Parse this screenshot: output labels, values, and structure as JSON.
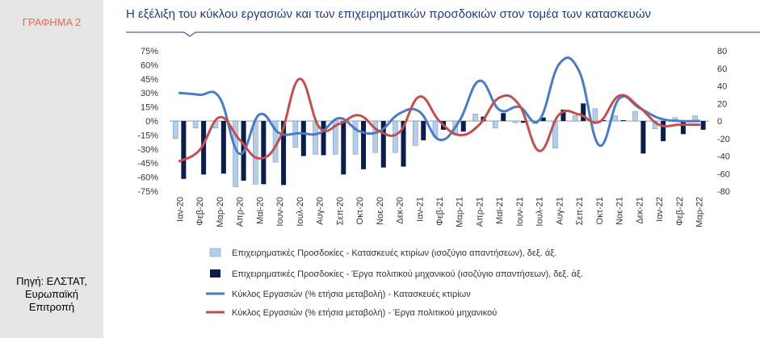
{
  "sidebar": {
    "figure_label": "ΓΡΑΦΗΜΑ 2",
    "source": "Πηγή: ΕΛΣΤΑΤ,\nΕυρωπαϊκή\nΕπιτροπή"
  },
  "colors": {
    "title": "#1f3d7a",
    "accent_label": "#e26b5a",
    "sidebar_bg": "#e7e6e6",
    "light_bar": "#b4cde8",
    "dark_bar": "#0b1d4a",
    "blue_line": "#4a7bc4",
    "red_line": "#c0504d"
  },
  "chart_data": {
    "type": "bar",
    "title": "Η εξέλιξη του κύκλου εργασιών και των επιχειρηματικών προσδοκιών στον τομέα των κατασκευών",
    "categories": [
      "Ιαν-20",
      "Φεβ-20",
      "Μαρ-20",
      "Απρ-20",
      "Μαϊ-20",
      "Ιουν-20",
      "Ιουλ-20",
      "Αυγ-20",
      "Σεπ-20",
      "Οκτ-20",
      "Νοε-20",
      "Δεκ-20",
      "Ιαν-21",
      "Φεβ-21",
      "Μαρ-21",
      "Απρ-21",
      "Μαϊ-21",
      "Ιουν-21",
      "Ιουλ-21",
      "Αυγ-21",
      "Σεπ-21",
      "Οκτ-21",
      "Νοε-21",
      "Δεκ-21",
      "Ιαν-22",
      "Φεβ-22",
      "Μαρ-22"
    ],
    "left_axis": {
      "min": -75,
      "max": 75,
      "step": 15,
      "unit": "%"
    },
    "right_axis": {
      "min": -80,
      "max": 80,
      "step": 20
    },
    "legend_position": "bottom",
    "series": [
      {
        "name": "Επιχειρηματικές Προσδοκίες - Κατασκευές κτιρίων (ισοζύγιο απαντήσεων), δεξ. άξ.",
        "type": "bar",
        "axis": "right",
        "color": "#b4cde8",
        "values": [
          -20,
          -8,
          -8,
          -75,
          -72,
          -47,
          -30,
          -38,
          -38,
          -38,
          -36,
          -36,
          -28,
          -18,
          -16,
          8,
          -8,
          -2,
          -3,
          -31,
          6,
          14,
          6,
          11,
          -9,
          4,
          6
        ]
      },
      {
        "name": "Επιχειρηματικές Προσδοκίες - Έργα πολιτικού μηχανικού (ισοζύγιο απαντήσεων), δεξ. άξ.",
        "type": "bar",
        "axis": "right",
        "color": "#0b1d4a",
        "values": [
          -66,
          -61,
          -60,
          -68,
          -72,
          -73,
          -40,
          -39,
          -61,
          -55,
          -53,
          -52,
          -22,
          -10,
          -12,
          5,
          9,
          -2,
          4,
          13,
          20,
          1,
          1,
          -37,
          -23,
          -15,
          -10
        ]
      },
      {
        "name": "Κύκλος Εργασιών (% ετήσια μεταβολή) - Κατασκευές κτιρίων",
        "type": "line",
        "axis": "left",
        "color": "#4a7bc4",
        "values": [
          30,
          28,
          25,
          -35,
          7,
          -13,
          -13,
          -13,
          3,
          -11,
          -11,
          8,
          10,
          -20,
          0,
          43,
          12,
          15,
          1,
          61,
          53,
          -26,
          24,
          14,
          3,
          0,
          0
        ]
      },
      {
        "name": "Κύκλος Εργασιών (% ετήσια μεταβολή) - Έργα πολιτικού μηχανικού",
        "type": "line",
        "axis": "left",
        "color": "#c0504d",
        "values": [
          -43,
          -31,
          4,
          -20,
          -40,
          -19,
          45,
          -7,
          -3,
          6,
          -11,
          -12,
          26,
          0,
          -15,
          -4,
          25,
          17,
          -32,
          7,
          7,
          -1,
          27,
          15,
          -4,
          -4,
          -4
        ]
      }
    ]
  }
}
